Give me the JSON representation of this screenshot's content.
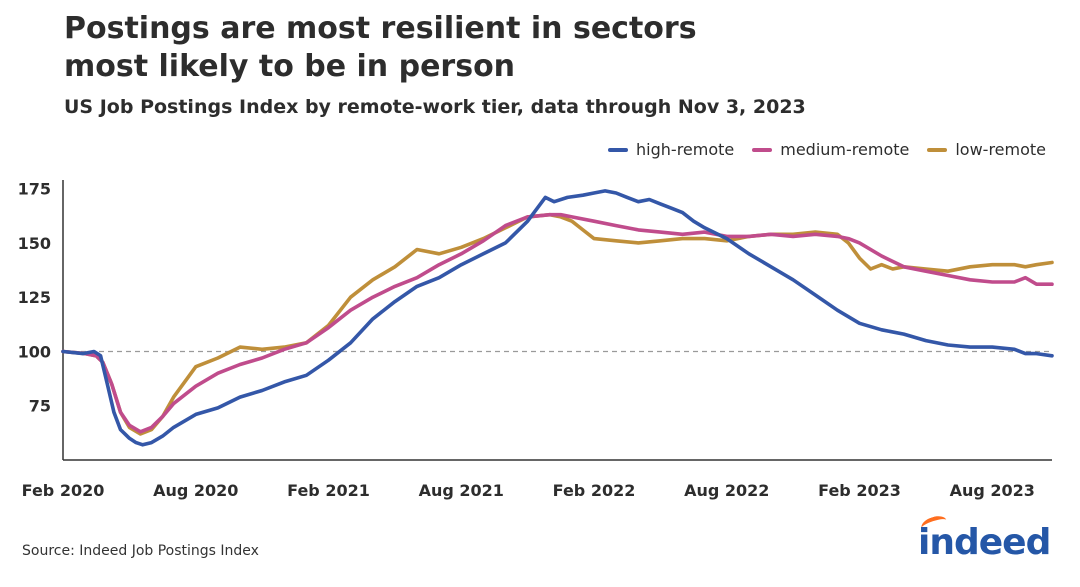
{
  "title_line1": "Postings are most resilient in sectors",
  "title_line2": "most likely to be in person",
  "subtitle": "US Job Postings Index by remote-work tier, data through Nov 3, 2023",
  "source": "Source: Indeed Job Postings Index",
  "logo_text": "indeed",
  "colors": {
    "high": "#3457a8",
    "medium": "#c04c8c",
    "low": "#bf8f3a",
    "reference": "#9a9a9a",
    "axis": "#333333",
    "logo": "#2557a7"
  },
  "chart_data": {
    "type": "line",
    "title": "Postings are most resilient in sectors most likely to be in person",
    "subtitle": "US Job Postings Index by remote-work tier, data through Nov 3, 2023",
    "x_unit": "months since Feb 2020",
    "xlim": [
      0,
      44.7
    ],
    "ylim": [
      50,
      179
    ],
    "yticks": [
      75,
      100,
      125,
      150,
      175
    ],
    "xticks": [
      {
        "x": 0,
        "label": "Feb 2020"
      },
      {
        "x": 6,
        "label": "Aug 2020"
      },
      {
        "x": 12,
        "label": "Feb 2021"
      },
      {
        "x": 18,
        "label": "Aug 2021"
      },
      {
        "x": 24,
        "label": "Feb 2022"
      },
      {
        "x": 30,
        "label": "Aug 2022"
      },
      {
        "x": 36,
        "label": "Feb 2023"
      },
      {
        "x": 42,
        "label": "Aug 2023"
      }
    ],
    "reference_line": 100,
    "legend_position": "top-right",
    "series": [
      {
        "name": "high-remote",
        "x": [
          0,
          0.9,
          1.4,
          1.7,
          2.0,
          2.3,
          2.6,
          3.0,
          3.3,
          3.6,
          4.0,
          4.5,
          5.0,
          6.0,
          7.0,
          8.0,
          9.0,
          10.0,
          11.0,
          12.0,
          13.0,
          14.0,
          15.0,
          16.0,
          17.0,
          18.0,
          19.0,
          20.0,
          21.0,
          21.8,
          22.2,
          22.8,
          23.5,
          24.0,
          24.5,
          25.0,
          25.5,
          26.0,
          26.5,
          27.0,
          27.5,
          28.0,
          28.5,
          29.0,
          30.0,
          31.0,
          32.0,
          33.0,
          34.0,
          35.0,
          36.0,
          37.0,
          38.0,
          39.0,
          40.0,
          41.0,
          42.0,
          43.0,
          43.5,
          44.0,
          44.7
        ],
        "y": [
          100,
          99,
          100,
          98,
          85,
          72,
          64,
          60,
          58,
          57,
          58,
          61,
          65,
          71,
          74,
          79,
          82,
          86,
          89,
          96,
          104,
          115,
          123,
          130,
          134,
          140,
          145,
          150,
          160,
          171,
          169,
          171,
          172,
          173,
          174,
          173,
          171,
          169,
          170,
          168,
          166,
          164,
          160,
          157,
          152,
          145,
          139,
          133,
          126,
          119,
          113,
          110,
          108,
          105,
          103,
          102,
          102,
          101,
          99,
          99,
          98
        ]
      },
      {
        "name": "medium-remote",
        "x": [
          0,
          1.0,
          1.5,
          1.8,
          2.2,
          2.6,
          3.0,
          3.5,
          4.0,
          4.5,
          5.0,
          6.0,
          7.0,
          8.0,
          9.0,
          10.0,
          11.0,
          12.0,
          13.0,
          14.0,
          15.0,
          16.0,
          17.0,
          18.0,
          19.0,
          20.0,
          21.0,
          22.0,
          22.5,
          23.0,
          24.0,
          25.0,
          26.0,
          27.0,
          28.0,
          29.0,
          30.0,
          31.0,
          32.0,
          33.0,
          34.0,
          35.0,
          35.5,
          36.0,
          37.0,
          38.0,
          39.0,
          40.0,
          41.0,
          42.0,
          43.0,
          43.5,
          44.0,
          44.7
        ],
        "y": [
          100,
          99,
          98,
          95,
          85,
          72,
          66,
          63,
          65,
          70,
          76,
          84,
          90,
          94,
          97,
          101,
          104,
          111,
          119,
          125,
          130,
          134,
          140,
          145,
          151,
          158,
          162,
          163,
          163,
          162,
          160,
          158,
          156,
          155,
          154,
          155,
          153,
          153,
          154,
          153,
          154,
          153,
          152,
          150,
          144,
          139,
          137,
          135,
          133,
          132,
          132,
          134,
          131,
          131
        ]
      },
      {
        "name": "low-remote",
        "x": [
          0,
          1.0,
          1.5,
          1.8,
          2.2,
          2.6,
          3.0,
          3.5,
          4.0,
          4.5,
          5.0,
          6.0,
          7.0,
          8.0,
          9.0,
          10.0,
          11.0,
          12.0,
          13.0,
          14.0,
          15.0,
          16.0,
          17.0,
          18.0,
          19.0,
          20.0,
          21.0,
          22.0,
          22.5,
          23.0,
          23.5,
          24.0,
          25.0,
          26.0,
          27.0,
          28.0,
          29.0,
          30.0,
          31.0,
          32.0,
          33.0,
          34.0,
          35.0,
          35.5,
          36.0,
          36.5,
          37.0,
          37.5,
          38.0,
          39.0,
          40.0,
          41.0,
          42.0,
          43.0,
          43.5,
          44.0,
          44.7
        ],
        "y": [
          100,
          99,
          98,
          95,
          85,
          72,
          65,
          62,
          64,
          70,
          79,
          93,
          97,
          102,
          101,
          102,
          104,
          112,
          125,
          133,
          139,
          147,
          145,
          148,
          152,
          157,
          162,
          163,
          162,
          160,
          156,
          152,
          151,
          150,
          151,
          152,
          152,
          151,
          153,
          154,
          154,
          155,
          154,
          150,
          143,
          138,
          140,
          138,
          139,
          138,
          137,
          139,
          140,
          140,
          139,
          140,
          141
        ]
      }
    ]
  }
}
